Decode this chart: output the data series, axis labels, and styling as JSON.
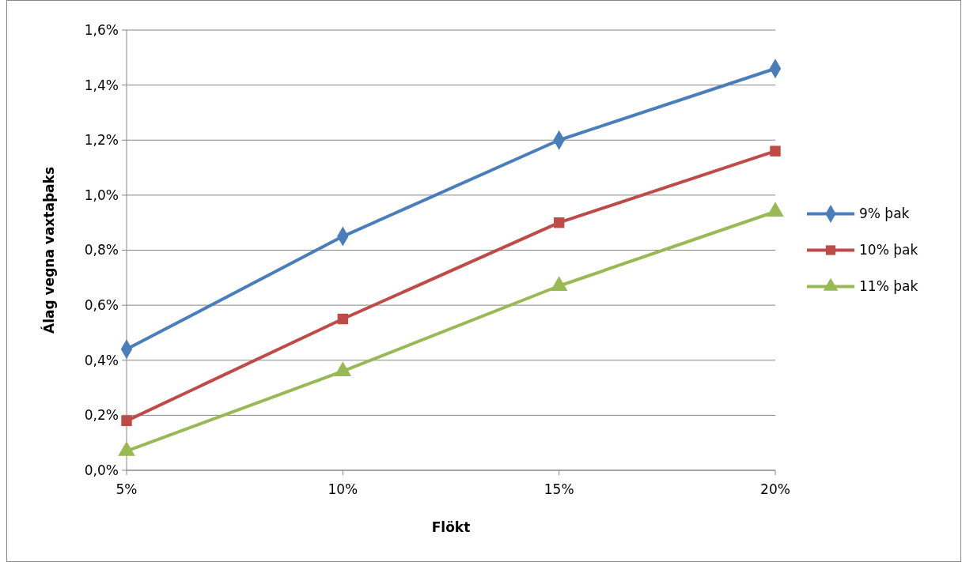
{
  "chart_data": {
    "type": "line",
    "xlabel": "Flökt",
    "ylabel": "Álag vegna vaxtaþaks",
    "categories": [
      "5%",
      "10%",
      "15%",
      "20%"
    ],
    "series": [
      {
        "name": "9% þak",
        "color": "#4a7ebb",
        "marker": "diamond",
        "values": [
          0.44,
          0.85,
          1.2,
          1.46
        ]
      },
      {
        "name": "10% þak",
        "color": "#be4b48",
        "marker": "square",
        "values": [
          0.18,
          0.55,
          0.9,
          1.16
        ]
      },
      {
        "name": "11% þak",
        "color": "#98b954",
        "marker": "triangle",
        "values": [
          0.07,
          0.36,
          0.67,
          0.94
        ]
      }
    ],
    "ylim": [
      0,
      1.6
    ],
    "yticks": [
      {
        "value": 0,
        "label": "0,0%"
      },
      {
        "value": 0.2,
        "label": "0,2%"
      },
      {
        "value": 0.4,
        "label": "0,4%"
      },
      {
        "value": 0.6,
        "label": "0,6%"
      },
      {
        "value": 0.8,
        "label": "0,8%"
      },
      {
        "value": 1,
        "label": "1,0%"
      },
      {
        "value": 1.2,
        "label": "1,2%"
      },
      {
        "value": 1.4,
        "label": "1,4%"
      },
      {
        "value": 1.6,
        "label": "1,6%"
      }
    ],
    "grid": "y",
    "legend": "right",
    "line_style": "solid"
  }
}
